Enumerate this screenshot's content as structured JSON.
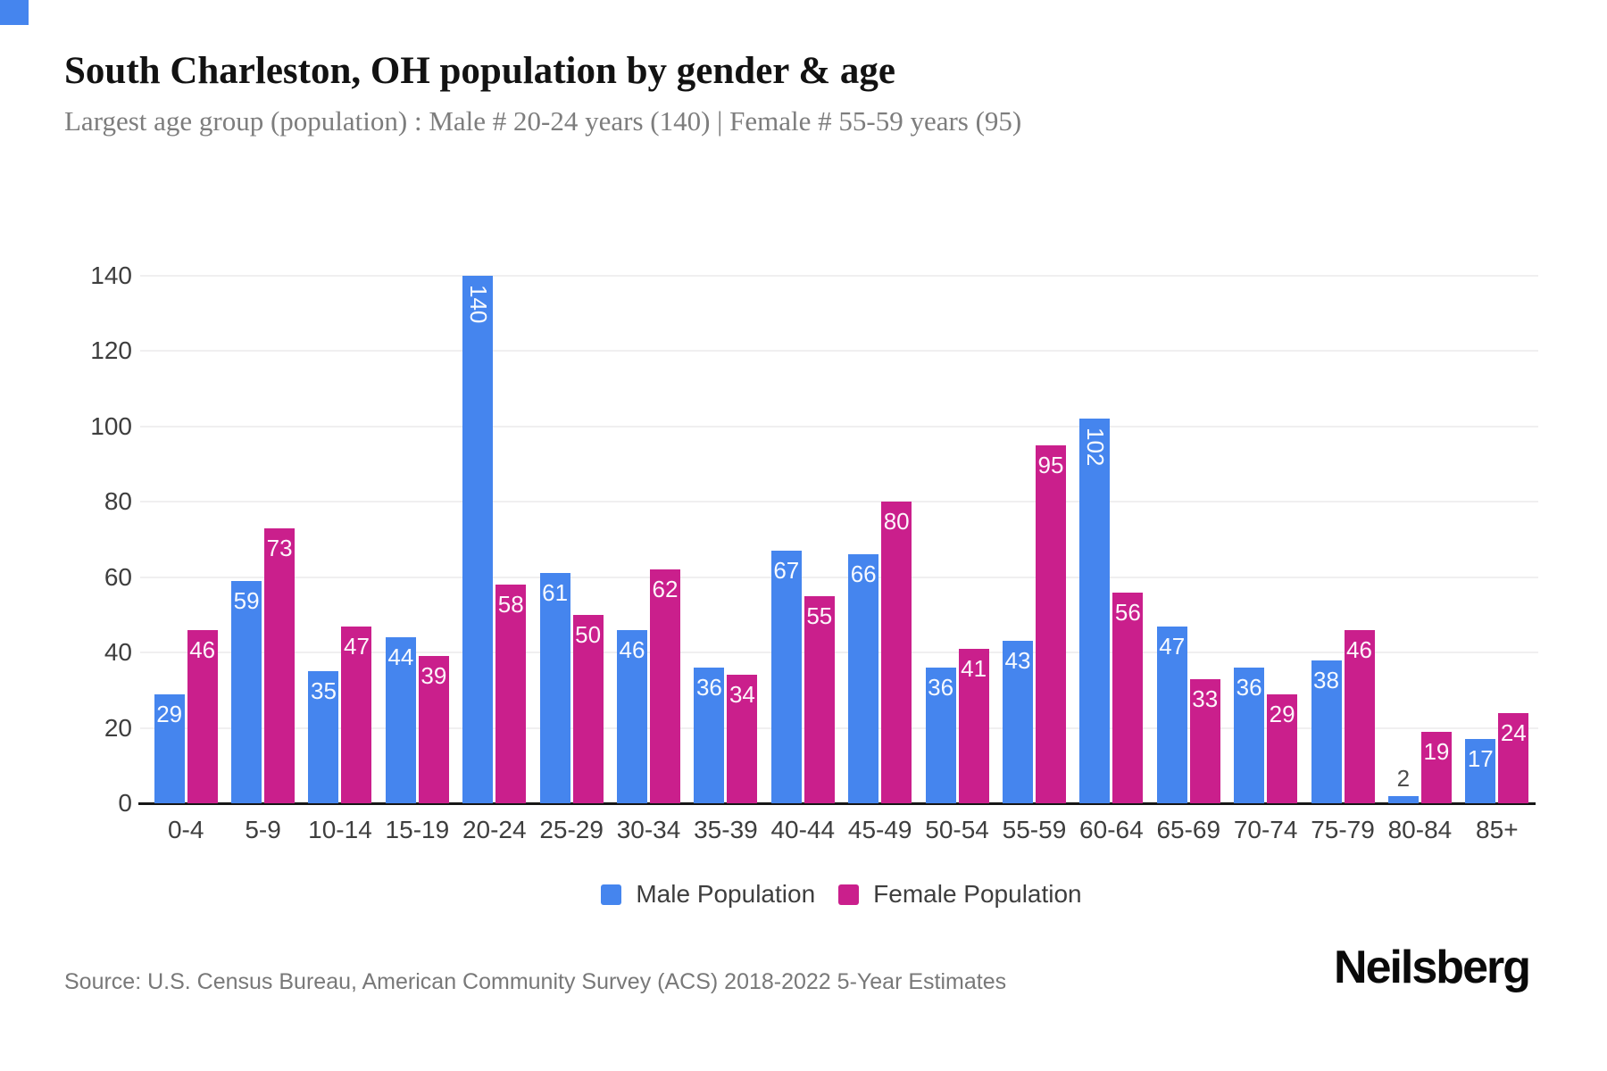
{
  "corner_mark": {
    "color": "#4585ee"
  },
  "header": {
    "title": "South Charleston, OH population by gender & age",
    "subtitle": "Largest age group (population) : Male # 20-24 years (140) | Female # 55-59 years (95)"
  },
  "chart_data": {
    "type": "bar",
    "title": "South Charleston, OH population by gender & age",
    "categories": [
      "0-4",
      "5-9",
      "10-14",
      "15-19",
      "20-24",
      "25-29",
      "30-34",
      "35-39",
      "40-44",
      "45-49",
      "50-54",
      "55-59",
      "60-64",
      "65-69",
      "70-74",
      "75-79",
      "80-84",
      "85+"
    ],
    "series": [
      {
        "name": "Male Population",
        "color": "#4585ee",
        "values": [
          29,
          59,
          35,
          44,
          140,
          61,
          46,
          36,
          67,
          66,
          36,
          43,
          102,
          47,
          36,
          38,
          2,
          17
        ]
      },
      {
        "name": "Female Population",
        "color": "#ca1f8c",
        "values": [
          46,
          73,
          47,
          39,
          58,
          50,
          62,
          34,
          55,
          80,
          41,
          95,
          56,
          33,
          29,
          46,
          19,
          24
        ]
      }
    ],
    "xlabel": "",
    "ylabel": "",
    "ylim": [
      0,
      140
    ],
    "yticks": [
      0,
      20,
      40,
      60,
      80,
      100,
      120,
      140
    ],
    "grid": "horizontal",
    "legend_position": "bottom",
    "value_label_style": "white labels inside bar tops; rotated vertical for values >= 100; dark label above bar when bar too short"
  },
  "legend": {
    "items": [
      {
        "label": "Male Population",
        "color": "#4585ee"
      },
      {
        "label": "Female Population",
        "color": "#ca1f8c"
      }
    ]
  },
  "footer": {
    "source": "Source: U.S. Census Bureau, American Community Survey (ACS) 2018-2022 5-Year Estimates",
    "brand": "Neilsberg"
  }
}
